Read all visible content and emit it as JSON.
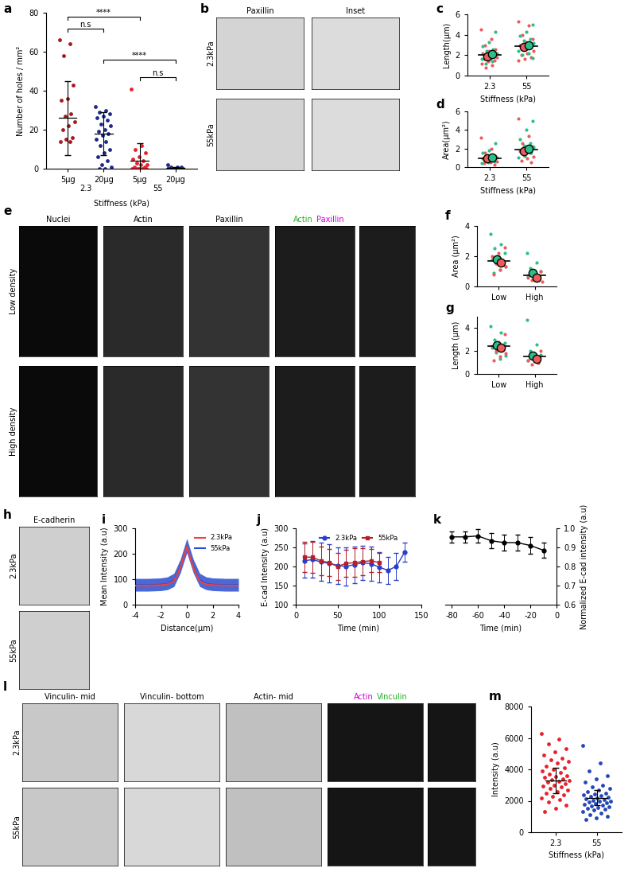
{
  "chart_data": [
    {
      "panel": "a",
      "type": "dot_plot",
      "ylabel": "Number of holes / mm²",
      "xlabel": "Stiffness (kPa)",
      "categories": [
        "5µg",
        "20µg",
        "5µg",
        "20µg"
      ],
      "group_labels": [
        {
          "text": "2.3",
          "categories": [
            0,
            1
          ]
        },
        {
          "text": "55",
          "categories": [
            2,
            3
          ]
        }
      ],
      "colors": [
        "#a5191e",
        "#1c2a86",
        "#e8212b",
        "#1c2a86"
      ],
      "ylim": [
        0,
        80
      ],
      "yticks": [
        0,
        20,
        40,
        60,
        80
      ],
      "values": [
        [
          66,
          64,
          58,
          43,
          36,
          35,
          28,
          27,
          24,
          22,
          20,
          16,
          15,
          14,
          14
        ],
        [
          32,
          30,
          29,
          28,
          27,
          26,
          25,
          23,
          22,
          20,
          19,
          18,
          17,
          15,
          14,
          12,
          10,
          8,
          6,
          4,
          2,
          1,
          0,
          0
        ],
        [
          41,
          12,
          10,
          8,
          6,
          5,
          4,
          3,
          2,
          2,
          1,
          1,
          0,
          0,
          0,
          0,
          0,
          0,
          0,
          0
        ],
        [
          2,
          1,
          1,
          1,
          0,
          0,
          0,
          0,
          0,
          0,
          0,
          0,
          0,
          0,
          0,
          0
        ]
      ],
      "mean": [
        26,
        18,
        4,
        0.4
      ],
      "sd": [
        19,
        11,
        9,
        0.6
      ],
      "annotations": [
        {
          "text": "n.s",
          "x": [
            0,
            1
          ],
          "y": 72
        },
        {
          "text": "****",
          "x": [
            0,
            2
          ],
          "y": 78
        },
        {
          "text": "****",
          "x": [
            1,
            3
          ],
          "y": 56
        },
        {
          "text": "n.s",
          "x": [
            2,
            3
          ],
          "y": 47
        }
      ]
    },
    {
      "panel": "c",
      "type": "superplot",
      "ylabel": "Length(µm)",
      "xlabel": "Stiffness (kPa)",
      "categories": [
        "2.3",
        "55"
      ],
      "ylim": [
        0,
        6
      ],
      "yticks": [
        0,
        2,
        4,
        6
      ],
      "mean": [
        2.0,
        2.9
      ],
      "series": [
        {
          "color": "#ef5a5a",
          "values": [
            [
              4.5,
              3.6,
              3.0,
              2.6,
              2.4,
              2.2,
              2.0,
              1.9,
              1.8,
              1.7,
              1.6,
              1.5,
              1.4,
              1.2,
              1.0,
              0.8
            ],
            [
              5.3,
              4.9,
              4.0,
              3.6,
              3.3,
              3.0,
              2.8,
              2.6,
              2.4,
              2.2,
              2.0,
              1.8,
              1.6,
              1.5
            ]
          ],
          "means": [
            1.9,
            2.8
          ]
        },
        {
          "color": "#2bbf8a",
          "values": [
            [
              4.3,
              3.3,
              2.9,
              2.6,
              2.4,
              2.2,
              2.1,
              2.0,
              1.9,
              1.8,
              1.6,
              1.4,
              1.2
            ],
            [
              5.0,
              4.3,
              3.9,
              3.6,
              3.4,
              3.2,
              3.1,
              3.0,
              2.8,
              2.6,
              2.4,
              2.2,
              2.0,
              1.7
            ]
          ],
          "means": [
            2.1,
            3.0
          ]
        }
      ]
    },
    {
      "panel": "d",
      "type": "superplot",
      "ylabel": "Area(µm²)",
      "xlabel": "Stiffness (kPa)",
      "categories": [
        "2.3",
        "55"
      ],
      "ylim": [
        0,
        6
      ],
      "yticks": [
        0,
        2,
        4,
        6
      ],
      "mean": [
        0.95,
        1.85
      ],
      "series": [
        {
          "color": "#ef5a5a",
          "values": [
            [
              3.2,
              2.0,
              1.5,
              1.2,
              1.0,
              0.9,
              0.8,
              0.7,
              0.6,
              0.5,
              0.4,
              0.3
            ],
            [
              5.2,
              3.3,
              2.6,
              2.2,
              1.9,
              1.7,
              1.5,
              1.3,
              1.1,
              0.9,
              0.7,
              0.5
            ]
          ],
          "means": [
            0.9,
            1.7
          ]
        },
        {
          "color": "#2bbf8a",
          "values": [
            [
              2.6,
              1.8,
              1.5,
              1.3,
              1.1,
              1.0,
              0.9,
              0.8,
              0.6,
              0.5,
              0.4
            ],
            [
              5.0,
              4.0,
              3.0,
              2.6,
              2.3,
              2.1,
              1.9,
              1.7,
              1.5,
              1.2,
              1.0
            ]
          ],
          "means": [
            1.0,
            2.0
          ]
        }
      ]
    },
    {
      "panel": "f",
      "type": "superplot",
      "ylabel": "Area (µm²)",
      "categories": [
        "Low",
        "High"
      ],
      "ylim": [
        0,
        4
      ],
      "yticks": [
        0,
        2,
        4
      ],
      "mean": [
        1.7,
        0.75
      ],
      "series": [
        {
          "color": "#2bbf8a",
          "values": [
            [
              3.5,
              2.8,
              2.5,
              2.2,
              2.0,
              1.8,
              1.7,
              1.5,
              1.3,
              1.1,
              0.9
            ],
            [
              2.2,
              1.6,
              1.2,
              1.0,
              0.9,
              0.7,
              0.5
            ]
          ],
          "means": [
            1.8,
            0.9
          ]
        },
        {
          "color": "#ef5a5a",
          "values": [
            [
              2.6,
              2.2,
              2.0,
              1.7,
              1.5,
              1.3,
              1.1,
              0.8
            ],
            [
              1.0,
              0.8,
              0.6,
              0.5,
              0.4,
              0.3
            ]
          ],
          "means": [
            1.6,
            0.6
          ]
        }
      ]
    },
    {
      "panel": "g",
      "type": "superplot",
      "ylabel": "Length (µm)",
      "categories": [
        "Low",
        "High"
      ],
      "ylim": [
        0,
        5
      ],
      "yticks": [
        0,
        2,
        4
      ],
      "mean": [
        2.4,
        1.5
      ],
      "series": [
        {
          "color": "#2bbf8a",
          "values": [
            [
              4.2,
              3.6,
              3.0,
              2.7,
              2.5,
              2.3,
              2.1,
              1.9,
              1.6,
              1.3
            ],
            [
              4.7,
              2.6,
              2.0,
              1.7,
              1.5,
              1.2,
              1.0
            ]
          ],
          "means": [
            2.5,
            1.6
          ]
        },
        {
          "color": "#ef5a5a",
          "values": [
            [
              3.5,
              2.8,
              2.4,
              2.2,
              2.0,
              1.8,
              1.5,
              1.2
            ],
            [
              2.0,
              1.5,
              1.2,
              1.0,
              0.8
            ]
          ],
          "means": [
            2.3,
            1.3
          ]
        }
      ]
    },
    {
      "panel": "i",
      "type": "line",
      "xlabel": "Distance(µm)",
      "ylabel": "Mean Intensity (a.u)",
      "x": [
        -4,
        -3.5,
        -3,
        -2.5,
        -2,
        -1.5,
        -1,
        -0.5,
        0,
        0.5,
        1,
        1.5,
        2,
        2.5,
        3,
        3.5,
        4
      ],
      "xlim": [
        -4,
        4
      ],
      "xticks": [
        -4,
        -2,
        0,
        2,
        4
      ],
      "ylim": [
        0,
        300
      ],
      "yticks": [
        0,
        100,
        200,
        300
      ],
      "legend": "upper right",
      "series": [
        {
          "name": "2.3kPa",
          "color": "#ef4040",
          "type": "line",
          "values": [
            75,
            75,
            75,
            76,
            77,
            80,
            92,
            145,
            228,
            145,
            92,
            80,
            77,
            76,
            75,
            75,
            75
          ]
        },
        {
          "name": "55kPa",
          "color": "#2a4fd0",
          "type": "band",
          "values": [
            78,
            78,
            78,
            79,
            80,
            84,
            97,
            152,
            232,
            152,
            97,
            84,
            80,
            79,
            78,
            78,
            78
          ],
          "error": [
            25,
            25,
            25,
            25,
            25,
            25,
            26,
            27,
            28,
            27,
            26,
            25,
            25,
            25,
            25,
            25,
            25
          ]
        }
      ]
    },
    {
      "panel": "j",
      "type": "line",
      "xlabel": "Time (min)",
      "ylabel": "E-cad Intensity (a.u)",
      "xlim": [
        0,
        150
      ],
      "xticks": [
        0,
        50,
        100,
        150
      ],
      "ylim": [
        100,
        300
      ],
      "yticks": [
        100,
        150,
        200,
        250,
        300
      ],
      "legend": "upper center",
      "series": [
        {
          "name": "2.3kPa",
          "color": "#2a3fc8",
          "type": "errorbar",
          "marker": "circle",
          "x": [
            10,
            20,
            30,
            40,
            50,
            60,
            70,
            80,
            90,
            100,
            110,
            120,
            130
          ],
          "values": [
            215,
            218,
            212,
            208,
            203,
            200,
            205,
            210,
            207,
            198,
            190,
            200,
            237
          ],
          "error": [
            45,
            48,
            50,
            50,
            48,
            50,
            48,
            45,
            45,
            40,
            35,
            35,
            25
          ]
        },
        {
          "name": "55kPa",
          "color": "#b3202a",
          "type": "errorbar",
          "marker": "square",
          "x": [
            10,
            20,
            30,
            40,
            50,
            60,
            70,
            80,
            90,
            100
          ],
          "values": [
            225,
            224,
            215,
            210,
            200,
            208,
            210,
            213,
            215,
            210
          ],
          "error": [
            40,
            40,
            38,
            35,
            35,
            35,
            38,
            35,
            30,
            25
          ]
        }
      ]
    },
    {
      "panel": "k",
      "type": "line",
      "xlabel": "Time (min)",
      "ylabel": "Normalized E-cad intensity (a.u)",
      "x": [
        -80,
        -70,
        -60,
        -50,
        -40,
        -30,
        -20,
        -10
      ],
      "xlim": [
        -85,
        0
      ],
      "xticks": [
        -80,
        -60,
        -40,
        -20,
        0
      ],
      "ylim": [
        0.6,
        1.0
      ],
      "yticks": [
        0.6,
        0.7,
        0.8,
        0.9,
        1.0
      ],
      "series": [
        {
          "color": "#000000",
          "type": "errorbar",
          "marker": "circle",
          "values": [
            0.955,
            0.955,
            0.96,
            0.935,
            0.925,
            0.925,
            0.91,
            0.885
          ],
          "error": [
            0.03,
            0.03,
            0.035,
            0.04,
            0.04,
            0.04,
            0.045,
            0.04
          ]
        }
      ]
    },
    {
      "panel": "m",
      "type": "dot_plot",
      "ylabel": "Intensity (a.u)",
      "xlabel": "Stiffness (kPa)",
      "categories": [
        "2.3",
        "55"
      ],
      "colors": [
        "#e8212b",
        "#2447b8"
      ],
      "ylim": [
        0,
        8000
      ],
      "yticks": [
        0,
        2000,
        4000,
        6000,
        8000
      ],
      "values": [
        [
          6300,
          5900,
          5600,
          5300,
          5100,
          4900,
          4700,
          4600,
          4500,
          4400,
          4200,
          4100,
          4000,
          3900,
          3800,
          3700,
          3600,
          3550,
          3500,
          3400,
          3350,
          3300,
          3250,
          3200,
          3100,
          3000,
          2950,
          2900,
          2800,
          2700,
          2600,
          2500,
          2400,
          2300,
          2200,
          2100,
          1900,
          1700,
          1500,
          1300
        ],
        [
          5500,
          4400,
          3900,
          3600,
          3400,
          3200,
          3000,
          2900,
          2800,
          2700,
          2600,
          2500,
          2450,
          2400,
          2350,
          2300,
          2250,
          2200,
          2150,
          2100,
          2050,
          2000,
          1950,
          1900,
          1850,
          1800,
          1750,
          1700,
          1650,
          1600,
          1550,
          1500,
          1450,
          1400,
          1300,
          1200,
          1100,
          1000,
          900,
          800
        ]
      ],
      "mean": [
        3300,
        2200
      ],
      "sd": [
        800,
        500
      ]
    }
  ],
  "images": [
    {
      "panel": "b",
      "rows": [
        "2.3kPa",
        "55kPa"
      ],
      "columns": [
        {
          "title": "Paxillin",
          "color": "#d4d4d4"
        },
        {
          "title": "Inset",
          "color": "#dcdcdc"
        }
      ]
    },
    {
      "panel": "e",
      "rows": [
        "Low density",
        "High density"
      ],
      "columns": [
        {
          "title": "Nuclei",
          "color": "#0a0a0a"
        },
        {
          "title": "Actin",
          "color": "#2a2a2a"
        },
        {
          "title": "Paxillin",
          "color": "#333333"
        },
        {
          "title": [
            {
              "text": "Actin",
              "color": "#22b022"
            },
            {
              "text": "Paxillin",
              "color": "#d000d0"
            }
          ],
          "color": "#1c1c1c"
        },
        {
          "title": null,
          "color": "#1c1c1c"
        }
      ]
    },
    {
      "panel": "h",
      "rows": [
        "2.3kPa",
        "55kPa"
      ],
      "columns": [
        {
          "title": "E-cadherin",
          "color": "#cfcfcf"
        }
      ]
    },
    {
      "panel": "l",
      "rows": [
        "2.3kPa",
        "55kPa"
      ],
      "columns": [
        {
          "title": "Vinculin- mid",
          "color": "#c8c8c8"
        },
        {
          "title": "Vinculin- bottom",
          "color": "#d8d8d8"
        },
        {
          "title": "Actin- mid",
          "color": "#c0c0c0"
        },
        {
          "title": [
            {
              "text": "Actin",
              "color": "#d000d0"
            },
            {
              "text": "Vinculin",
              "color": "#22b022"
            }
          ],
          "color": "#151515"
        },
        {
          "title": null,
          "color": "#151515"
        }
      ]
    }
  ]
}
